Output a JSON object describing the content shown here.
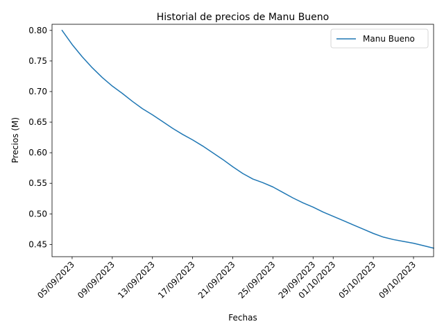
{
  "chart_data": {
    "type": "line",
    "title": "Historial de precios de Manu Bueno",
    "xlabel": "Fechas",
    "ylabel": "Precios (M)",
    "legend_position": "top-right",
    "grid": false,
    "xlim": [
      "2023-09-03",
      "2023-10-11"
    ],
    "ylim": [
      0.43,
      0.81
    ],
    "x_ticks": [
      {
        "date": "2023-09-05",
        "label": "05/09/2023"
      },
      {
        "date": "2023-09-09",
        "label": "09/09/2023"
      },
      {
        "date": "2023-09-13",
        "label": "13/09/2023"
      },
      {
        "date": "2023-09-17",
        "label": "17/09/2023"
      },
      {
        "date": "2023-09-21",
        "label": "21/09/2023"
      },
      {
        "date": "2023-09-25",
        "label": "25/09/2023"
      },
      {
        "date": "2023-09-29",
        "label": "29/09/2023"
      },
      {
        "date": "2023-10-01",
        "label": "01/10/2023"
      },
      {
        "date": "2023-10-05",
        "label": "05/10/2023"
      },
      {
        "date": "2023-10-09",
        "label": "09/10/2023"
      }
    ],
    "y_ticks": [
      {
        "value": 0.45,
        "label": "0.45"
      },
      {
        "value": 0.5,
        "label": "0.50"
      },
      {
        "value": 0.55,
        "label": "0.55"
      },
      {
        "value": 0.6,
        "label": "0.60"
      },
      {
        "value": 0.65,
        "label": "0.65"
      },
      {
        "value": 0.7,
        "label": "0.70"
      },
      {
        "value": 0.75,
        "label": "0.75"
      },
      {
        "value": 0.8,
        "label": "0.80"
      }
    ],
    "series": [
      {
        "name": "Manu Bueno",
        "color": "#1f77b4",
        "points": [
          {
            "x": "2023-09-04",
            "y": 0.8
          },
          {
            "x": "2023-09-05",
            "y": 0.777
          },
          {
            "x": "2023-09-06",
            "y": 0.757
          },
          {
            "x": "2023-09-07",
            "y": 0.739
          },
          {
            "x": "2023-09-08",
            "y": 0.723
          },
          {
            "x": "2023-09-09",
            "y": 0.709
          },
          {
            "x": "2023-09-10",
            "y": 0.697
          },
          {
            "x": "2023-09-11",
            "y": 0.684
          },
          {
            "x": "2023-09-12",
            "y": 0.672
          },
          {
            "x": "2023-09-13",
            "y": 0.662
          },
          {
            "x": "2023-09-14",
            "y": 0.651
          },
          {
            "x": "2023-09-15",
            "y": 0.64
          },
          {
            "x": "2023-09-16",
            "y": 0.63
          },
          {
            "x": "2023-09-17",
            "y": 0.621
          },
          {
            "x": "2023-09-18",
            "y": 0.611
          },
          {
            "x": "2023-09-19",
            "y": 0.6
          },
          {
            "x": "2023-09-20",
            "y": 0.589
          },
          {
            "x": "2023-09-21",
            "y": 0.577
          },
          {
            "x": "2023-09-22",
            "y": 0.566
          },
          {
            "x": "2023-09-23",
            "y": 0.557
          },
          {
            "x": "2023-09-24",
            "y": 0.551
          },
          {
            "x": "2023-09-25",
            "y": 0.544
          },
          {
            "x": "2023-09-26",
            "y": 0.535
          },
          {
            "x": "2023-09-27",
            "y": 0.526
          },
          {
            "x": "2023-09-28",
            "y": 0.518
          },
          {
            "x": "2023-09-29",
            "y": 0.511
          },
          {
            "x": "2023-09-30",
            "y": 0.503
          },
          {
            "x": "2023-10-01",
            "y": 0.496
          },
          {
            "x": "2023-10-02",
            "y": 0.489
          },
          {
            "x": "2023-10-03",
            "y": 0.482
          },
          {
            "x": "2023-10-04",
            "y": 0.475
          },
          {
            "x": "2023-10-05",
            "y": 0.468
          },
          {
            "x": "2023-10-06",
            "y": 0.462
          },
          {
            "x": "2023-10-07",
            "y": 0.458
          },
          {
            "x": "2023-10-08",
            "y": 0.455
          },
          {
            "x": "2023-10-09",
            "y": 0.452
          },
          {
            "x": "2023-10-10",
            "y": 0.448
          },
          {
            "x": "2023-10-11",
            "y": 0.444
          }
        ]
      }
    ]
  }
}
